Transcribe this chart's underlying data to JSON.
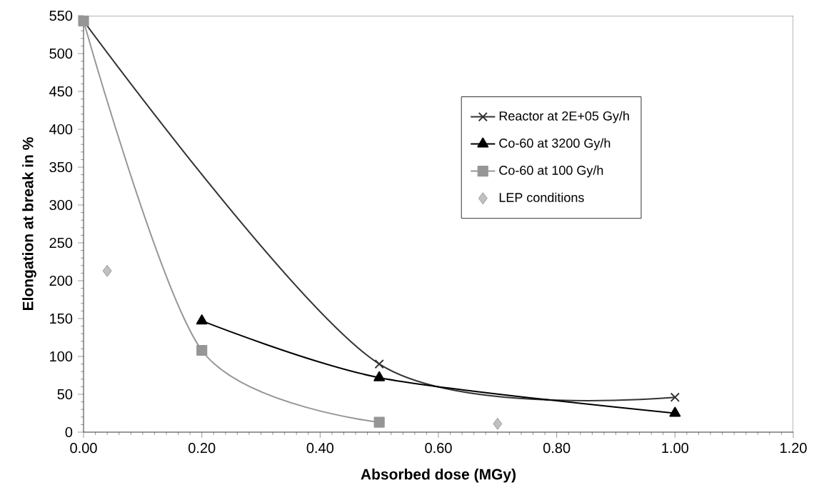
{
  "chart_data": {
    "type": "line",
    "xlabel": "Absorbed dose (MGy)",
    "ylabel": "Elongation at break in %",
    "xlim": [
      0,
      1.2
    ],
    "ylim": [
      0,
      550
    ],
    "xticks": [
      {
        "value": 0,
        "label": "0.00"
      },
      {
        "value": 0.2,
        "label": "0.20"
      },
      {
        "value": 0.4,
        "label": "0.40"
      },
      {
        "value": 0.6,
        "label": "0.60"
      },
      {
        "value": 0.8,
        "label": "0.80"
      },
      {
        "value": 1,
        "label": "1.00"
      },
      {
        "value": 1.2,
        "label": "1.20"
      }
    ],
    "yticks": [
      0,
      50,
      100,
      150,
      200,
      250,
      300,
      350,
      400,
      450,
      500,
      550
    ],
    "grid": false,
    "legend": "right",
    "series": [
      {
        "name": "Reactor at 2E+05 Gy/h",
        "color": "#333333",
        "marker": "cross",
        "x": [
          0,
          0.5,
          1
        ],
        "values": [
          543,
          90,
          46
        ]
      },
      {
        "name": "Co-60 at 3200 Gy/h",
        "color": "#000000",
        "marker": "triangle",
        "x": [
          0.2,
          0.5,
          1
        ],
        "values": [
          147,
          72,
          25
        ]
      },
      {
        "name": "Co-60 at 100 Gy/h",
        "color": "#969696",
        "marker": "square",
        "x": [
          0,
          0.2,
          0.5
        ],
        "values": [
          543,
          108,
          13
        ]
      },
      {
        "name": "LEP conditions",
        "type": "scatter",
        "color": "#c0c0c0",
        "marker": "diamond",
        "x": [
          0.04,
          0.7
        ],
        "values": [
          213,
          11
        ]
      }
    ]
  }
}
